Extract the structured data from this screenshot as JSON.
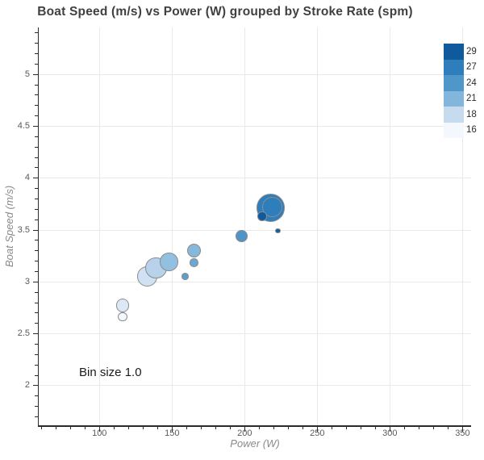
{
  "title": "Boat Speed (m/s) vs Power (W) grouped by Stroke Rate (spm)",
  "annotation": "Bin size 1.0",
  "chart_data": {
    "type": "scatter",
    "title": "Boat Speed (m/s) vs Power (W) grouped by Stroke Rate (spm)",
    "xlabel": "Power (W)",
    "ylabel": "Boat Speed (m/s)",
    "xlim": [
      58.2,
      355.9
    ],
    "ylim": [
      1.615,
      5.449
    ],
    "x_ticks": [
      100,
      150,
      200,
      250,
      300,
      350
    ],
    "y_ticks": [
      2,
      2.5,
      3,
      3.5,
      4,
      4.5,
      5
    ],
    "x_minor_step": 10,
    "y_minor_step": 0.1,
    "grid": true,
    "legend_position": "top-right-inside",
    "annotation_text": "Bin size 1.0",
    "marker_outline_color": "#8c8c8c",
    "points": [
      {
        "power": 116,
        "speed": 2.66,
        "stroke_rate_group": 16,
        "radius_px": 5.7,
        "color": "#f2f8fd"
      },
      {
        "power": 116,
        "speed": 2.77,
        "stroke_rate_group": 18,
        "radius_px": 8.3,
        "color": "#dbe8f5"
      },
      {
        "power": 133,
        "speed": 3.05,
        "stroke_rate_group": 18,
        "radius_px": 12.3,
        "color": "#cfe1f2"
      },
      {
        "power": 139,
        "speed": 3.13,
        "stroke_rate_group": 18,
        "radius_px": 13.3,
        "color": "#b7d2ea"
      },
      {
        "power": 148,
        "speed": 3.19,
        "stroke_rate_group": 21,
        "radius_px": 11.3,
        "color": "#93c0e1"
      },
      {
        "power": 165,
        "speed": 3.3,
        "stroke_rate_group": 21,
        "radius_px": 8.7,
        "color": "#85b8db"
      },
      {
        "power": 165,
        "speed": 3.18,
        "stroke_rate_group": 21,
        "radius_px": 5.3,
        "color": "#6da6d1"
      },
      {
        "power": 159,
        "speed": 3.05,
        "stroke_rate_group": 24,
        "radius_px": 4.3,
        "color": "#5f9dca"
      },
      {
        "power": 198,
        "speed": 3.44,
        "stroke_rate_group": 24,
        "radius_px": 7.3,
        "color": "#4f94c6"
      },
      {
        "power": 218,
        "speed": 3.71,
        "stroke_rate_group": 27,
        "radius_px": 17.3,
        "color": "#2e7ebc"
      },
      {
        "power": 219,
        "speed": 3.72,
        "stroke_rate_group": 27,
        "radius_px": 12.3,
        "color": "#2e7ebc"
      },
      {
        "power": 212,
        "speed": 3.63,
        "stroke_rate_group": 29,
        "radius_px": 5.7,
        "color": "#0f5a9e"
      },
      {
        "power": 223,
        "speed": 3.49,
        "stroke_rate_group": 29,
        "radius_px": 3.3,
        "color": "#14609f"
      }
    ]
  },
  "legend": {
    "entries": [
      {
        "label": "29",
        "color": "#0e5a9c"
      },
      {
        "label": "27",
        "color": "#2e7ebc"
      },
      {
        "label": "24",
        "color": "#4f97c8"
      },
      {
        "label": "21",
        "color": "#82b6db"
      },
      {
        "label": "18",
        "color": "#c6dbee"
      },
      {
        "label": "16",
        "color": "#f2f8fd"
      }
    ]
  }
}
